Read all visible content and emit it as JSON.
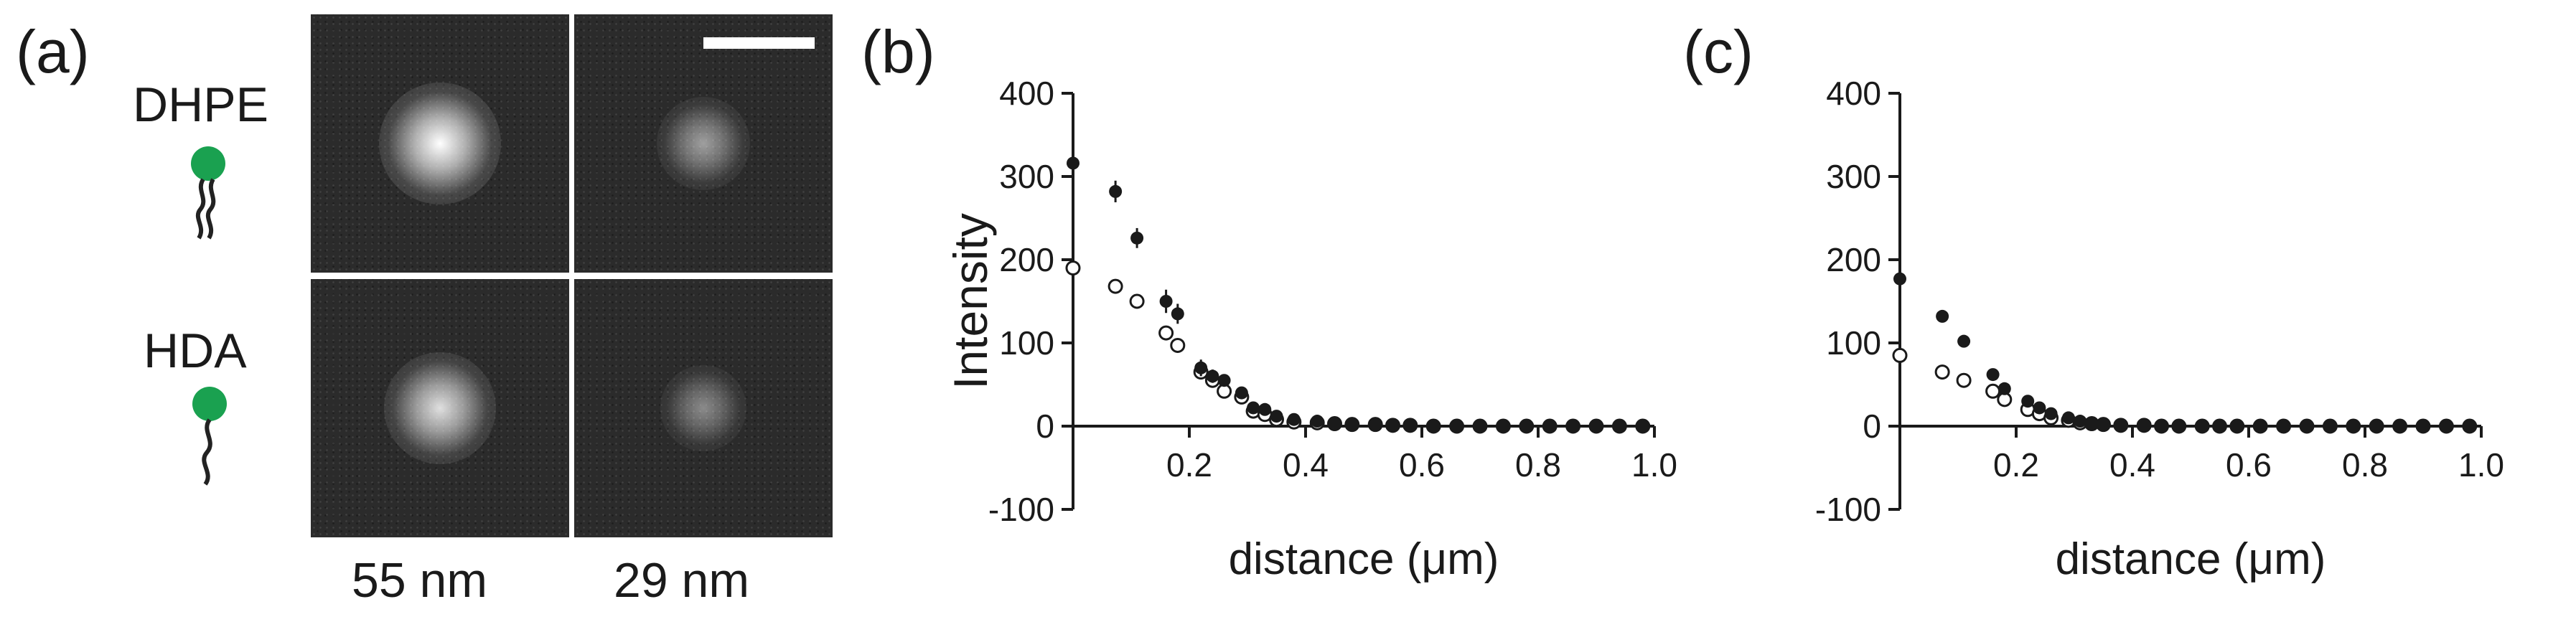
{
  "panel_a": {
    "letter": "(a)",
    "rows": [
      {
        "label": "DHPE",
        "icon": "lipid-double-tail-icon",
        "tails": 2
      },
      {
        "label": "HDA",
        "icon": "lipid-single-tail-icon",
        "tails": 1
      }
    ],
    "columns": [
      "55 nm",
      "29 nm"
    ],
    "spots": [
      [
        {
          "brightness": 1.0
        },
        {
          "brightness": 0.55
        }
      ],
      [
        {
          "brightness": 0.85
        },
        {
          "brightness": 0.45
        }
      ]
    ],
    "colors": {
      "headgroup": "#1aa150",
      "tail": "#222222",
      "image_bg": "#2b2b2b"
    }
  },
  "chart_data": [
    {
      "type": "scatter",
      "panel": "(b)",
      "xlabel": "distance (μm)",
      "ylabel": "Intensity",
      "xlim": [
        0,
        1.0
      ],
      "ylim": [
        -100,
        400
      ],
      "xticks": [
        "0.2",
        "0.4",
        "0.6",
        "0.8",
        "1.0"
      ],
      "xtick_values": [
        0.2,
        0.4,
        0.6,
        0.8,
        1.0
      ],
      "yticks": [
        "-100",
        "0",
        "100",
        "200",
        "300",
        "400"
      ],
      "ytick_values": [
        -100,
        0,
        100,
        200,
        300,
        400
      ],
      "series": [
        {
          "marker": "filled",
          "x": [
            0,
            0.073,
            0.11,
            0.16,
            0.18,
            0.22,
            0.24,
            0.26,
            0.29,
            0.31,
            0.33,
            0.35,
            0.38,
            0.42,
            0.45,
            0.48,
            0.52,
            0.55,
            0.58,
            0.62,
            0.66,
            0.7,
            0.74,
            0.78,
            0.82,
            0.86,
            0.9,
            0.94,
            0.98
          ],
          "y": [
            316,
            282,
            226,
            150,
            135,
            70,
            60,
            55,
            40,
            22,
            20,
            12,
            8,
            6,
            4,
            3,
            2,
            2,
            1,
            1,
            0,
            1,
            0,
            0,
            1,
            0,
            0,
            0,
            0
          ],
          "err": [
            5,
            13,
            12,
            14,
            12,
            10,
            8,
            6,
            5,
            4,
            4,
            3,
            3,
            2,
            2,
            2,
            2,
            2,
            2,
            2,
            2,
            2,
            2,
            2,
            2,
            2,
            2,
            2,
            2
          ]
        },
        {
          "marker": "open",
          "x": [
            0,
            0.073,
            0.11,
            0.16,
            0.18,
            0.22,
            0.24,
            0.26,
            0.29,
            0.31,
            0.33,
            0.35,
            0.38,
            0.42,
            0.45,
            0.48,
            0.52,
            0.55,
            0.58,
            0.62,
            0.66,
            0.7,
            0.74,
            0.78,
            0.82,
            0.86,
            0.9,
            0.94,
            0.98
          ],
          "y": [
            190,
            168,
            150,
            112,
            97,
            65,
            55,
            42,
            35,
            18,
            14,
            8,
            5,
            4,
            3,
            2,
            2,
            1,
            1,
            0,
            0,
            0,
            0,
            0,
            0,
            0,
            0,
            0,
            0
          ],
          "err": [
            4,
            4,
            4,
            4,
            4,
            3,
            3,
            3,
            3,
            2,
            2,
            2,
            2,
            2,
            2,
            2,
            2,
            2,
            2,
            2,
            2,
            2,
            2,
            2,
            2,
            2,
            2,
            2,
            2
          ]
        }
      ]
    },
    {
      "type": "scatter",
      "panel": "(c)",
      "xlabel": "distance (μm)",
      "ylabel": "",
      "xlim": [
        0,
        1.0
      ],
      "ylim": [
        -100,
        400
      ],
      "xticks": [
        "0.2",
        "0.4",
        "0.6",
        "0.8",
        "1.0"
      ],
      "xtick_values": [
        0.2,
        0.4,
        0.6,
        0.8,
        1.0
      ],
      "yticks": [
        "-100",
        "0",
        "100",
        "200",
        "300",
        "400"
      ],
      "ytick_values": [
        -100,
        0,
        100,
        200,
        300,
        400
      ],
      "series": [
        {
          "marker": "filled",
          "x": [
            0,
            0.073,
            0.11,
            0.16,
            0.18,
            0.22,
            0.24,
            0.26,
            0.29,
            0.31,
            0.33,
            0.35,
            0.38,
            0.42,
            0.45,
            0.48,
            0.52,
            0.55,
            0.58,
            0.62,
            0.66,
            0.7,
            0.74,
            0.78,
            0.82,
            0.86,
            0.9,
            0.94,
            0.98
          ],
          "y": [
            177,
            132,
            102,
            62,
            45,
            30,
            22,
            15,
            10,
            6,
            4,
            3,
            2,
            2,
            1,
            1,
            1,
            1,
            0,
            0,
            0,
            0,
            0,
            0,
            0,
            0,
            0,
            0,
            0
          ],
          "err": [
            5,
            4,
            4,
            4,
            4,
            3,
            3,
            3,
            2,
            2,
            2,
            2,
            2,
            2,
            2,
            2,
            2,
            2,
            2,
            2,
            2,
            2,
            2,
            2,
            2,
            2,
            2,
            2,
            2
          ]
        },
        {
          "marker": "open",
          "x": [
            0,
            0.073,
            0.11,
            0.16,
            0.18,
            0.22,
            0.24,
            0.26,
            0.29,
            0.31,
            0.33,
            0.35,
            0.38,
            0.42,
            0.45,
            0.48,
            0.52,
            0.55,
            0.58,
            0.62,
            0.66,
            0.7,
            0.74,
            0.78,
            0.82,
            0.86,
            0.9,
            0.94,
            0.98
          ],
          "y": [
            85,
            65,
            55,
            42,
            32,
            20,
            15,
            10,
            7,
            4,
            3,
            2,
            1,
            1,
            0,
            0,
            0,
            0,
            0,
            0,
            0,
            0,
            0,
            0,
            0,
            0,
            0,
            0,
            0
          ],
          "err": [
            3,
            3,
            3,
            3,
            3,
            2,
            2,
            2,
            2,
            2,
            2,
            2,
            2,
            2,
            2,
            2,
            2,
            2,
            2,
            2,
            2,
            2,
            2,
            2,
            2,
            2,
            2,
            2,
            2
          ]
        }
      ]
    }
  ]
}
